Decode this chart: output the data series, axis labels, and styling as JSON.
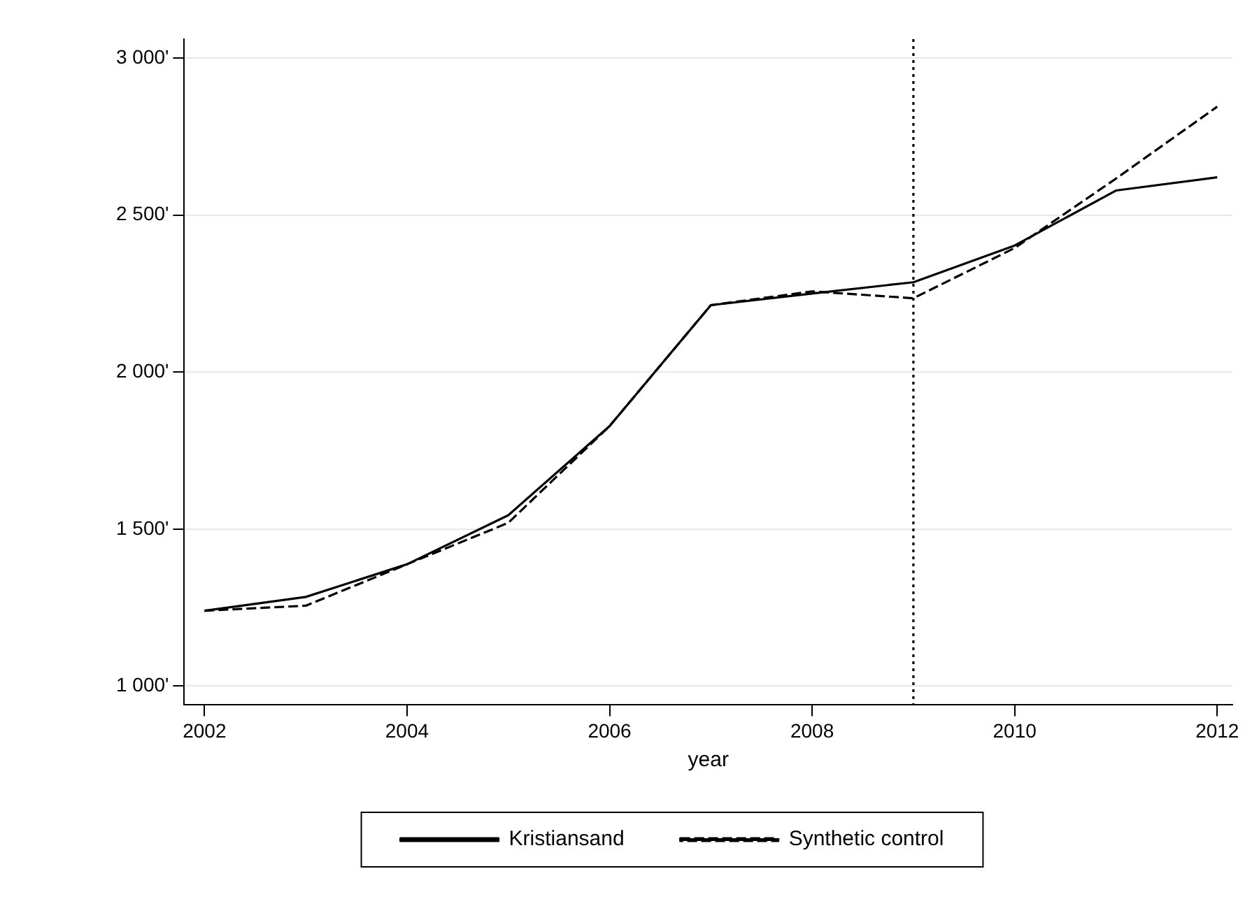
{
  "chart_data": {
    "type": "line",
    "xlabel": "year",
    "x": [
      2002,
      2003,
      2004,
      2005,
      2006,
      2007,
      2008,
      2009,
      2010,
      2011,
      2012
    ],
    "series": [
      {
        "name": "Kristiansand",
        "color": "#000000",
        "line_style": "solid",
        "values": [
          1240,
          1284,
          1388,
          1544,
          1828,
          2213,
          2250,
          2286,
          2403,
          2578,
          2620
        ]
      },
      {
        "name": "Synthetic control",
        "color": "#000000",
        "line_style": "dashed",
        "values": [
          1240,
          1256,
          1388,
          1520,
          1828,
          2213,
          2257,
          2235,
          2395,
          2616,
          2845
        ]
      }
    ],
    "xlim": [
      2001.8,
      2012.15
    ],
    "xticks": [
      2002,
      2004,
      2006,
      2008,
      2010,
      2012
    ],
    "ylim": [
      940,
      3060
    ],
    "yticks": [
      {
        "value": 1000,
        "label": "1 000'"
      },
      {
        "value": 1500,
        "label": "1 500'"
      },
      {
        "value": 2000,
        "label": "2 000'"
      },
      {
        "value": 2500,
        "label": "2 500'"
      },
      {
        "value": 3000,
        "label": "3 000'"
      }
    ],
    "ref_lines": [
      {
        "axis": "x",
        "value": 2009,
        "color": "#000000",
        "line_style": "dotted"
      }
    ],
    "grid": "y",
    "legend": "bottom",
    "marker": "none"
  }
}
